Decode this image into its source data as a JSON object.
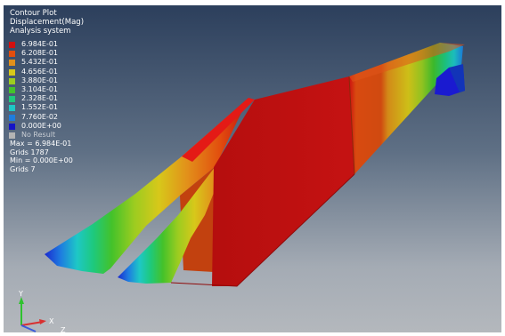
{
  "header": {
    "line1": "Contour Plot",
    "line2": "Displacement(Mag)",
    "line3": "Analysis system"
  },
  "legend": {
    "entries": [
      {
        "label": "6.984E-01",
        "color": "#d11010"
      },
      {
        "label": "6.208E-01",
        "color": "#e24e0e"
      },
      {
        "label": "5.432E-01",
        "color": "#e2901a"
      },
      {
        "label": "4.656E-01",
        "color": "#d7c81a"
      },
      {
        "label": "3.880E-01",
        "color": "#9ccc20"
      },
      {
        "label": "3.104E-01",
        "color": "#44c22a"
      },
      {
        "label": "2.328E-01",
        "color": "#1ec97c"
      },
      {
        "label": "1.552E-01",
        "color": "#1ec8c6"
      },
      {
        "label": "7.760E-02",
        "color": "#1e7de0"
      },
      {
        "label": "0.000E+00",
        "color": "#1414c8"
      }
    ],
    "no_result": {
      "label": "No Result",
      "color": "#b4b4b4"
    }
  },
  "stats": {
    "max": "Max = 6.984E-01",
    "max_grid": "Grids 1787",
    "min": "Min = 0.000E+00",
    "min_grid": "Grids 7"
  },
  "triad": {
    "x": "X",
    "y": "Y",
    "z": "Z"
  }
}
